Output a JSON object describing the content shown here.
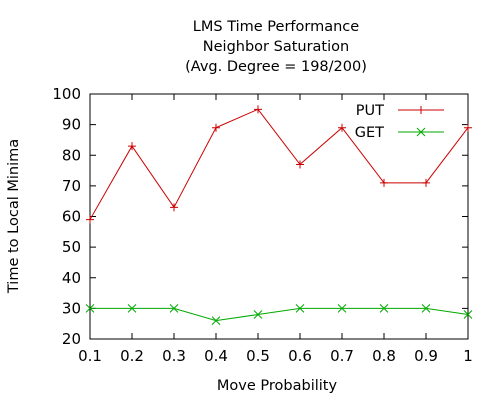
{
  "chart_data": {
    "type": "line",
    "title_lines": [
      "LMS Time Performance",
      "Neighbor Saturation",
      "(Avg. Degree = 198/200)"
    ],
    "xlabel": "Move Probability",
    "ylabel": "Time to Local Minima",
    "x": [
      0.1,
      0.2,
      0.3,
      0.4,
      0.5,
      0.6,
      0.7,
      0.8,
      0.9,
      1.0
    ],
    "x_tick_labels": [
      "0.1",
      "0.2",
      "0.3",
      "0.4",
      "0.5",
      "0.6",
      "0.7",
      "0.8",
      "0.9",
      "1"
    ],
    "y_ticks": [
      20,
      30,
      40,
      50,
      60,
      70,
      80,
      90,
      100
    ],
    "xlim": [
      0.1,
      1.0
    ],
    "ylim": [
      20,
      100
    ],
    "grid": false,
    "legend_position": "top-right",
    "series": [
      {
        "name": "PUT",
        "color": "#cc0000",
        "marker": "plus",
        "values": [
          59,
          83,
          63,
          89,
          95,
          77,
          89,
          71,
          71,
          89
        ]
      },
      {
        "name": "GET",
        "color": "#00aa00",
        "marker": "cross",
        "values": [
          30,
          30,
          30,
          26,
          28,
          30,
          30,
          30,
          30,
          28
        ]
      }
    ]
  }
}
